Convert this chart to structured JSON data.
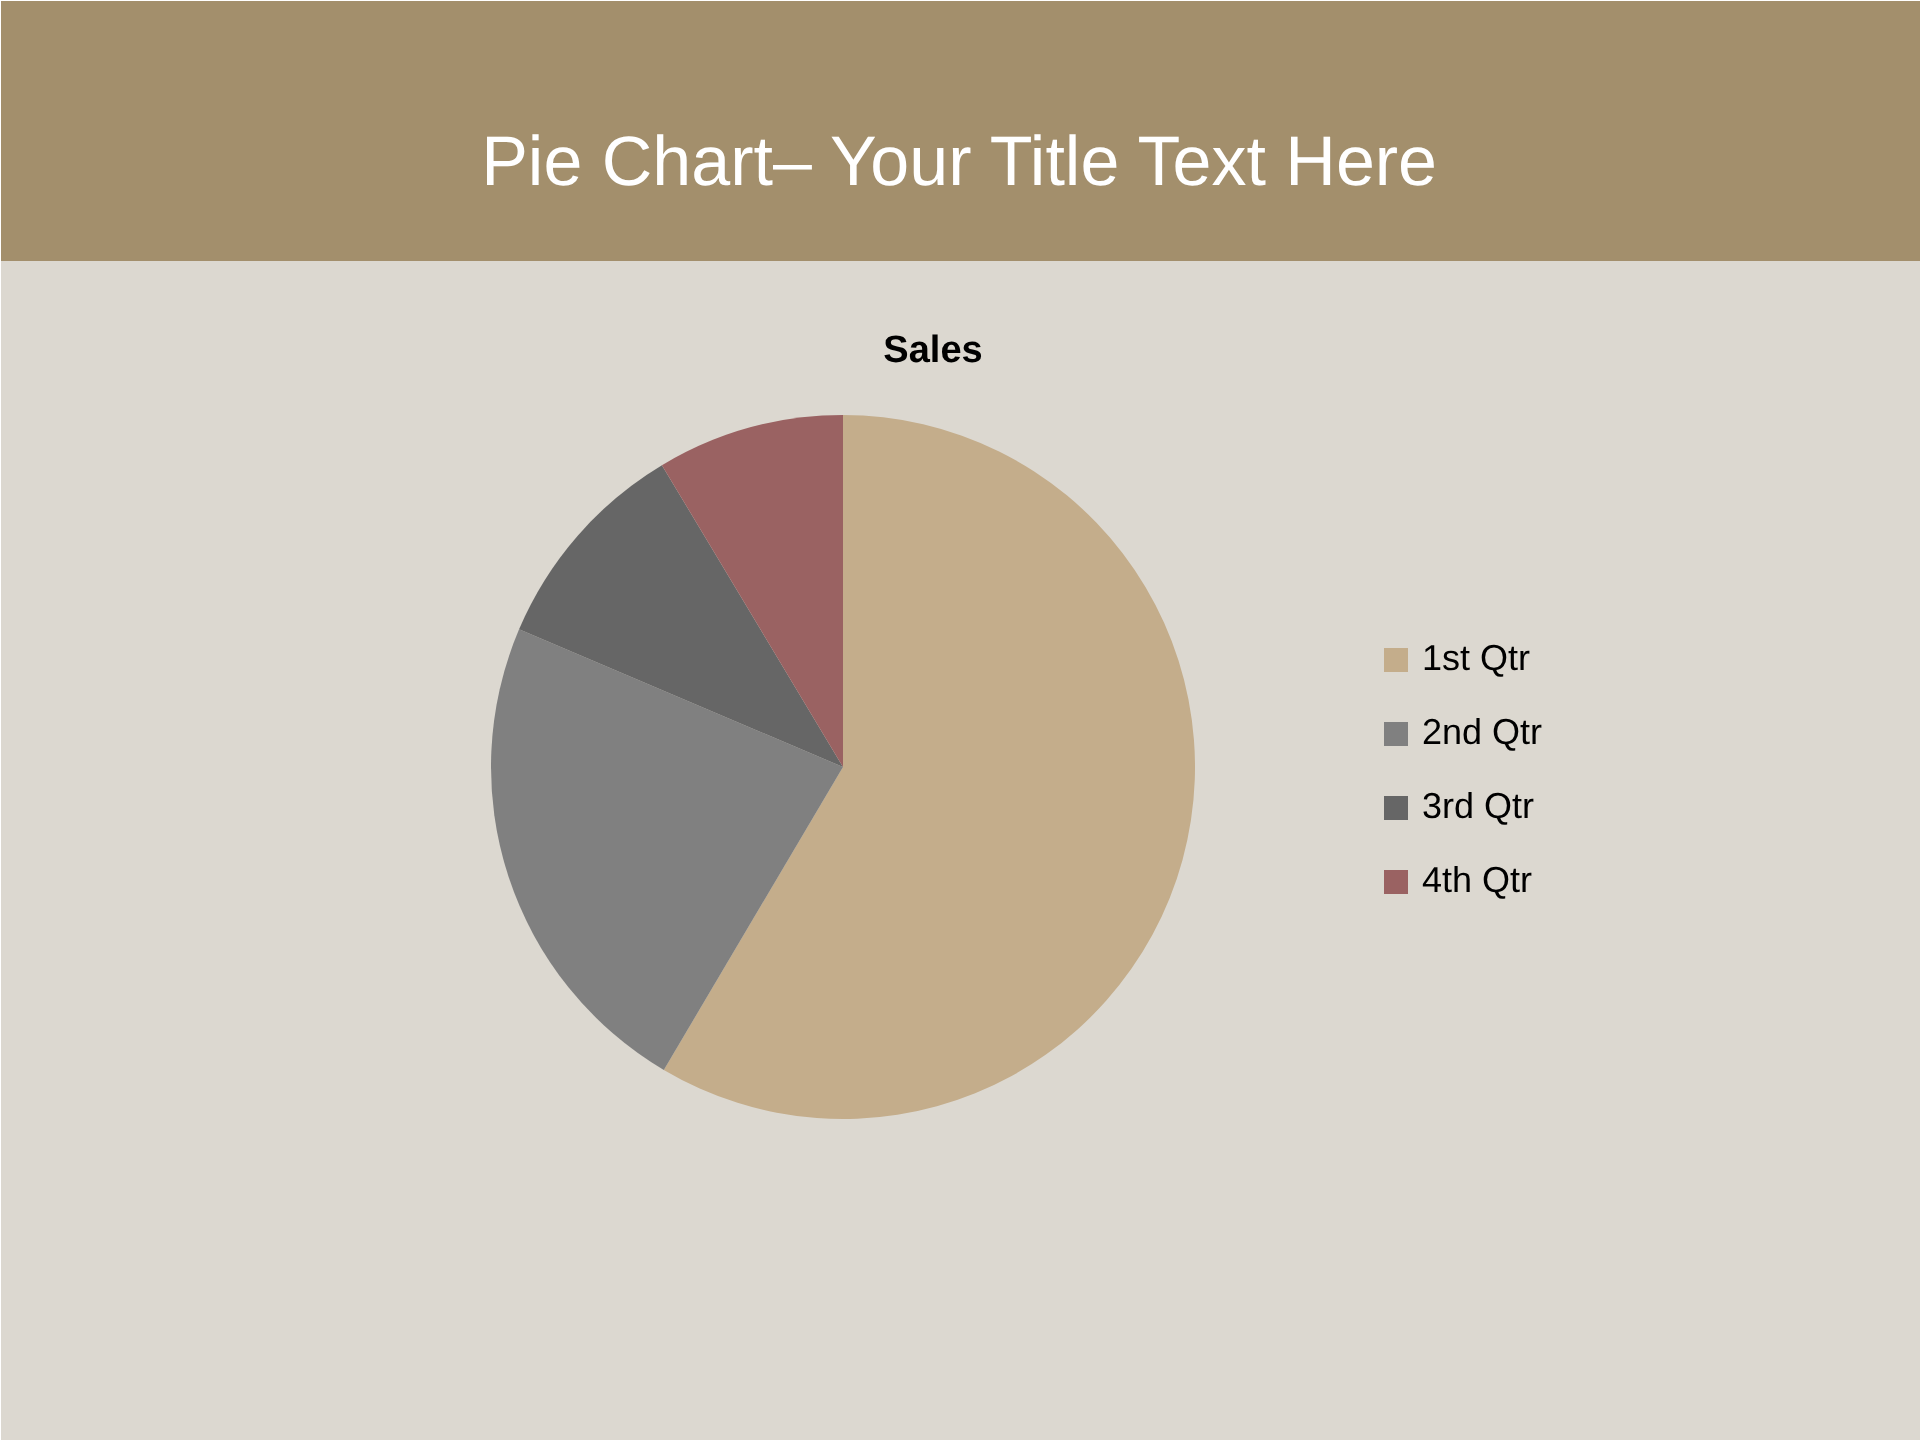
{
  "chart_data": {
    "type": "pie",
    "title": "Pie Chart– Your Title Text Here",
    "subtitle": "Sales",
    "categories": [
      "1st Qtr",
      "2nd Qtr",
      "3rd Qtr",
      "4th Qtr"
    ],
    "values": [
      58.5,
      22.9,
      10,
      8.6
    ],
    "colors": [
      "#c4ad8b",
      "#808080",
      "#666666",
      "#9a6262"
    ],
    "legend": "right"
  }
}
